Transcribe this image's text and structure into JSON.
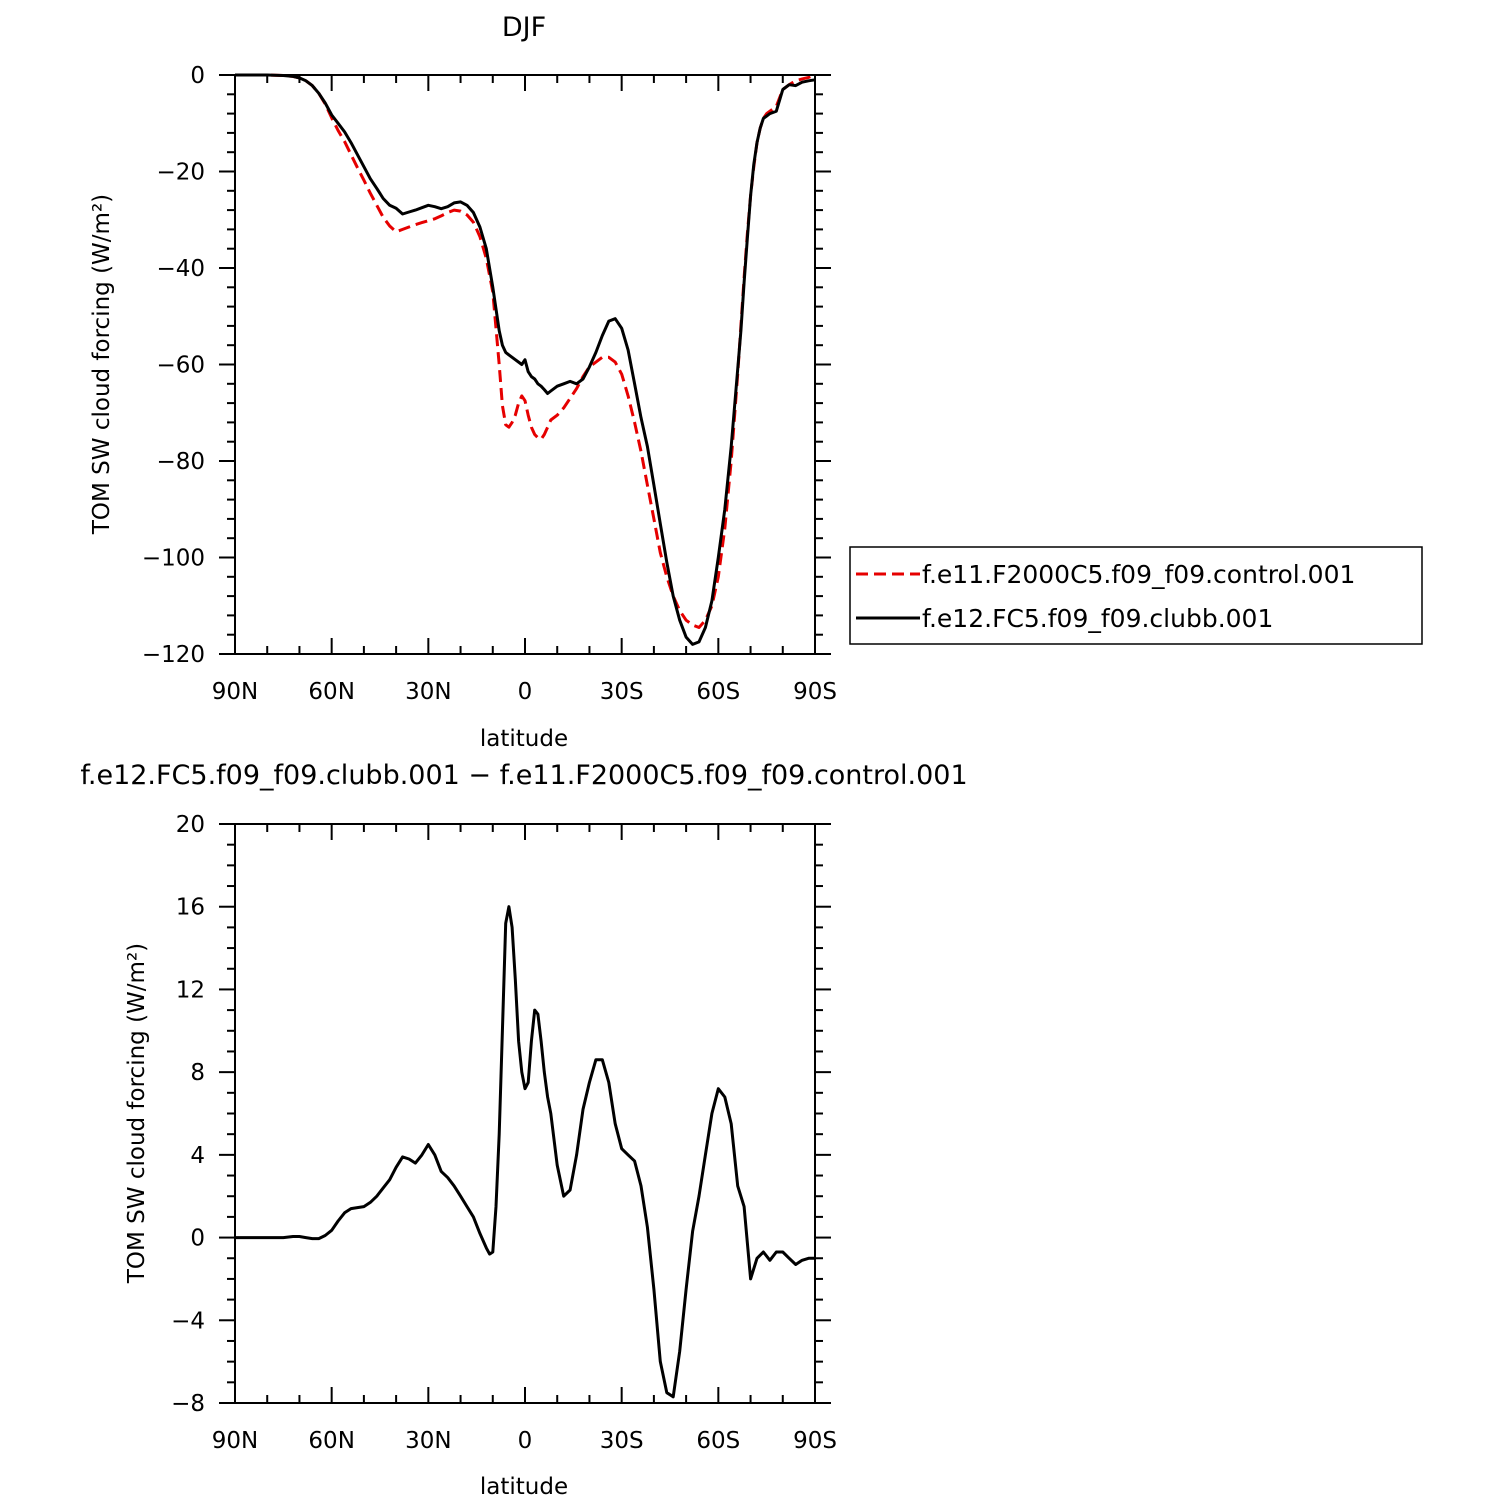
{
  "colors": {
    "control": "#e60000",
    "clubb": "#000000",
    "frame": "#000000"
  },
  "chart_data": [
    {
      "type": "line",
      "title": "DJF",
      "xlabel": "latitude",
      "ylabel": "TOM SW cloud forcing (W/m²)",
      "xlim": [
        90,
        -90
      ],
      "ylim": [
        -120,
        0
      ],
      "xticks": [
        90,
        60,
        30,
        0,
        -30,
        -60,
        -90
      ],
      "xtick_labels": [
        "90N",
        "60N",
        "30N",
        "0",
        "30S",
        "60S",
        "90S"
      ],
      "yticks": [
        0,
        -20,
        -40,
        -60,
        -80,
        -100,
        -120
      ],
      "ytick_labels": [
        "0",
        "−20",
        "−40",
        "−60",
        "−80",
        "−100",
        "−120"
      ],
      "grid": false,
      "legend": "outside-right",
      "series": [
        {
          "name": "f.e11.F2000C5.f09_f09.control.001",
          "style": "dashed",
          "color": "red",
          "x": [
            90,
            85,
            80,
            75,
            72,
            70,
            68,
            66,
            64,
            62,
            60,
            58,
            56,
            54,
            52,
            50,
            48,
            46,
            44,
            42,
            40,
            38,
            36,
            34,
            32,
            30,
            28,
            26,
            24,
            22,
            20,
            18,
            16,
            14,
            12,
            10,
            8,
            7,
            6,
            5,
            4,
            3,
            2,
            1,
            0,
            -1,
            -2,
            -3,
            -4,
            -5,
            -6,
            -7,
            -8,
            -10,
            -12,
            -14,
            -16,
            -18,
            -20,
            -22,
            -24,
            -26,
            -28,
            -30,
            -32,
            -34,
            -36,
            -38,
            -40,
            -42,
            -44,
            -46,
            -48,
            -50,
            -52,
            -54,
            -56,
            -58,
            -60,
            -62,
            -64,
            -66,
            -67,
            -68,
            -69,
            -70,
            -71,
            -72,
            -73,
            -74,
            -75,
            -76,
            -78,
            -80,
            -82,
            -84,
            -86,
            -88,
            -90
          ],
          "y": [
            0,
            0,
            0,
            -0.1,
            -0.3,
            -0.6,
            -1.2,
            -2.2,
            -3.8,
            -6,
            -8.9,
            -11.5,
            -13.8,
            -16.5,
            -19.2,
            -21.8,
            -24.5,
            -27,
            -29.5,
            -31.3,
            -32.5,
            -32,
            -31.5,
            -31,
            -30.6,
            -30.2,
            -29.8,
            -29.2,
            -28.5,
            -28,
            -28.2,
            -29,
            -30.5,
            -33.5,
            -38,
            -45,
            -60,
            -68.5,
            -72.5,
            -73,
            -72,
            -70.5,
            -68,
            -66.5,
            -67.5,
            -70.5,
            -73,
            -74.5,
            -75.2,
            -75.5,
            -74.5,
            -73,
            -71.5,
            -70.5,
            -69,
            -67,
            -65,
            -62.5,
            -60.5,
            -59.5,
            -58.5,
            -58.5,
            -59.5,
            -62,
            -66.5,
            -72,
            -78,
            -85,
            -92,
            -99,
            -104,
            -108,
            -111,
            -113,
            -114,
            -114.5,
            -113,
            -110,
            -104,
            -94,
            -80,
            -62,
            -52,
            -42,
            -33,
            -25,
            -19,
            -14,
            -11,
            -9,
            -8,
            -7.5,
            -6.5,
            -3,
            -2,
            -1.2,
            -0.8,
            -0.5,
            0
          ]
        },
        {
          "name": "f.e12.FC5.f09_f09.clubb.001",
          "style": "solid",
          "color": "black",
          "x": [
            90,
            85,
            80,
            75,
            72,
            70,
            68,
            66,
            64,
            62,
            60,
            58,
            56,
            54,
            52,
            50,
            48,
            46,
            44,
            42,
            40,
            38,
            36,
            34,
            32,
            30,
            28,
            26,
            24,
            22,
            20,
            18,
            16,
            14,
            12,
            10,
            8,
            7,
            6,
            5,
            4,
            3,
            2,
            1,
            0,
            -1,
            -2,
            -3,
            -4,
            -5,
            -6,
            -7,
            -8,
            -10,
            -12,
            -14,
            -16,
            -18,
            -20,
            -22,
            -24,
            -26,
            -28,
            -30,
            -32,
            -34,
            -36,
            -38,
            -40,
            -42,
            -44,
            -46,
            -48,
            -50,
            -52,
            -54,
            -56,
            -58,
            -60,
            -62,
            -64,
            -66,
            -67,
            -68,
            -69,
            -70,
            -71,
            -72,
            -73,
            -74,
            -75,
            -76,
            -78,
            -80,
            -82,
            -84,
            -86,
            -88,
            -90
          ],
          "y": [
            0,
            0,
            0,
            -0.1,
            -0.3,
            -0.6,
            -1.2,
            -2.2,
            -3.8,
            -5.8,
            -8.3,
            -10,
            -11.8,
            -14,
            -16.5,
            -19,
            -21.5,
            -23.5,
            -25.6,
            -27,
            -27.6,
            -28.8,
            -28.4,
            -28,
            -27.5,
            -27,
            -27.3,
            -27.7,
            -27.3,
            -26.5,
            -26.3,
            -27,
            -28.5,
            -31.5,
            -36,
            -44,
            -53,
            -56,
            -57.5,
            -58,
            -58.5,
            -59,
            -59.5,
            -60,
            -59,
            -61.5,
            -62.5,
            -63,
            -64,
            -64.5,
            -65.2,
            -66,
            -65.5,
            -64.5,
            -64,
            -63.5,
            -64,
            -63,
            -60.5,
            -57.5,
            -54,
            -51,
            -50.5,
            -52.5,
            -57,
            -64,
            -71,
            -77,
            -85,
            -93,
            -101,
            -108,
            -113,
            -116.5,
            -118,
            -117.5,
            -114.5,
            -109,
            -100,
            -90,
            -77,
            -61,
            -53,
            -43,
            -34,
            -25,
            -18.5,
            -14,
            -11,
            -9,
            -8.5,
            -8,
            -7.5,
            -3,
            -2,
            -2.2,
            -1.5,
            -1.2,
            -1
          ]
        }
      ]
    },
    {
      "type": "line",
      "title": "f.e12.FC5.f09_f09.clubb.001 − f.e11.F2000C5.f09_f09.control.001",
      "xlabel": "latitude",
      "ylabel": "TOM SW cloud forcing (W/m²)",
      "xlim": [
        90,
        -90
      ],
      "ylim": [
        -8,
        20
      ],
      "xticks": [
        90,
        60,
        30,
        0,
        -30,
        -60,
        -90
      ],
      "xtick_labels": [
        "90N",
        "60N",
        "30N",
        "0",
        "30S",
        "60S",
        "90S"
      ],
      "yticks": [
        20,
        16,
        12,
        8,
        4,
        0,
        -4,
        -8
      ],
      "ytick_labels": [
        "20",
        "16",
        "12",
        "8",
        "4",
        "0",
        "−4",
        "−8"
      ],
      "grid": false,
      "series": [
        {
          "style": "solid",
          "color": "black",
          "x": [
            90,
            85,
            80,
            75,
            72,
            70,
            68,
            66,
            64,
            62,
            60,
            58,
            56,
            54,
            52,
            50,
            48,
            46,
            44,
            42,
            40,
            38,
            36,
            34,
            32,
            30,
            28,
            26,
            24,
            22,
            20,
            18,
            16,
            14,
            12,
            11,
            10,
            9,
            8,
            7,
            6,
            5,
            4,
            3,
            2,
            1,
            0,
            -1,
            -2,
            -3,
            -4,
            -5,
            -6,
            -7,
            -8,
            -10,
            -12,
            -14,
            -16,
            -18,
            -20,
            -22,
            -24,
            -26,
            -28,
            -30,
            -32,
            -34,
            -36,
            -38,
            -40,
            -42,
            -44,
            -46,
            -48,
            -50,
            -52,
            -54,
            -56,
            -58,
            -60,
            -62,
            -64,
            -66,
            -68,
            -70,
            -72,
            -74,
            -76,
            -78,
            -80,
            -82,
            -84,
            -86,
            -88,
            -90
          ],
          "y": [
            0,
            0,
            0,
            0,
            0.05,
            0.05,
            0,
            -0.05,
            -0.05,
            0.1,
            0.35,
            0.8,
            1.2,
            1.4,
            1.45,
            1.5,
            1.7,
            2,
            2.4,
            2.8,
            3.4,
            3.9,
            3.8,
            3.6,
            4,
            4.5,
            4,
            3.2,
            2.9,
            2.5,
            2,
            1.5,
            1,
            0.2,
            -0.5,
            -0.8,
            -0.7,
            1.5,
            5,
            10,
            15.2,
            16,
            15,
            12.5,
            9.5,
            8,
            7.2,
            7.5,
            9.5,
            11,
            10.8,
            9.5,
            8,
            6.8,
            6,
            3.5,
            2,
            2.3,
            4,
            6.2,
            7.5,
            8.6,
            8.6,
            7.5,
            5.5,
            4.3,
            4,
            3.7,
            2.5,
            0.5,
            -2.5,
            -6,
            -7.5,
            -7.7,
            -5.5,
            -2.5,
            0.3,
            2,
            4,
            6,
            7.2,
            6.8,
            5.5,
            2.5,
            1.5,
            -2,
            -1,
            -0.7,
            -1.1,
            -0.7,
            -0.7,
            -1,
            -1.3,
            -1.1,
            -1,
            -1
          ]
        }
      ]
    }
  ]
}
